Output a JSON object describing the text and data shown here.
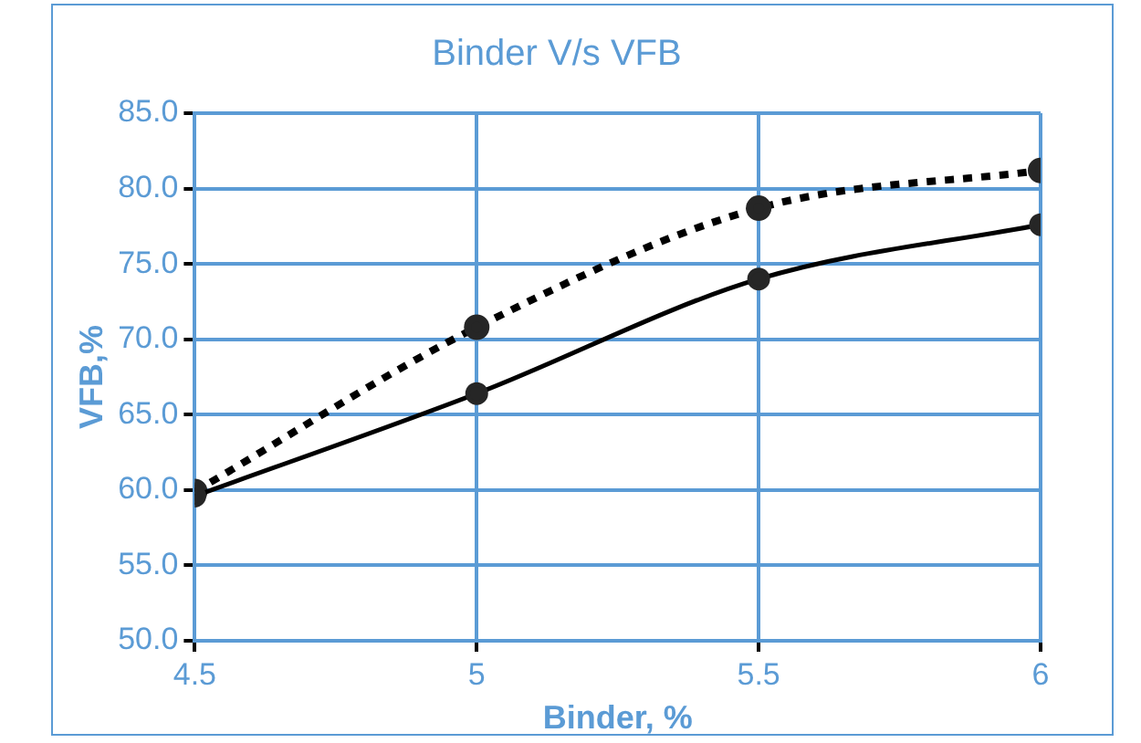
{
  "chart_data": {
    "type": "line",
    "title": "Binder V/s VFB",
    "xlabel": "Binder, %",
    "ylabel": "VFB,%",
    "x": [
      4.5,
      5,
      5.5,
      6
    ],
    "series": [
      {
        "color": "#000000",
        "line_style": "solid",
        "values": [
          59.6,
          66.4,
          74.0,
          77.6
        ]
      },
      {
        "color": "#000000",
        "line_style": "dotted",
        "values": [
          59.9,
          70.8,
          78.7,
          81.2
        ]
      }
    ],
    "xlim": [
      4.5,
      6
    ],
    "xticks": [
      4.5,
      5,
      5.5,
      6
    ],
    "ylim": [
      50,
      85
    ],
    "yticks": [
      {
        "value": 50,
        "label": "50.0"
      },
      {
        "value": 55,
        "label": "55.0"
      },
      {
        "value": 60,
        "label": "60.0"
      },
      {
        "value": 65,
        "label": "65.0"
      },
      {
        "value": 70,
        "label": "70.0"
      },
      {
        "value": 75,
        "label": "75.0"
      },
      {
        "value": 80,
        "label": "80.0"
      },
      {
        "value": 85,
        "label": "85.0"
      }
    ],
    "grid": true,
    "legend": false,
    "marker": "circle"
  }
}
